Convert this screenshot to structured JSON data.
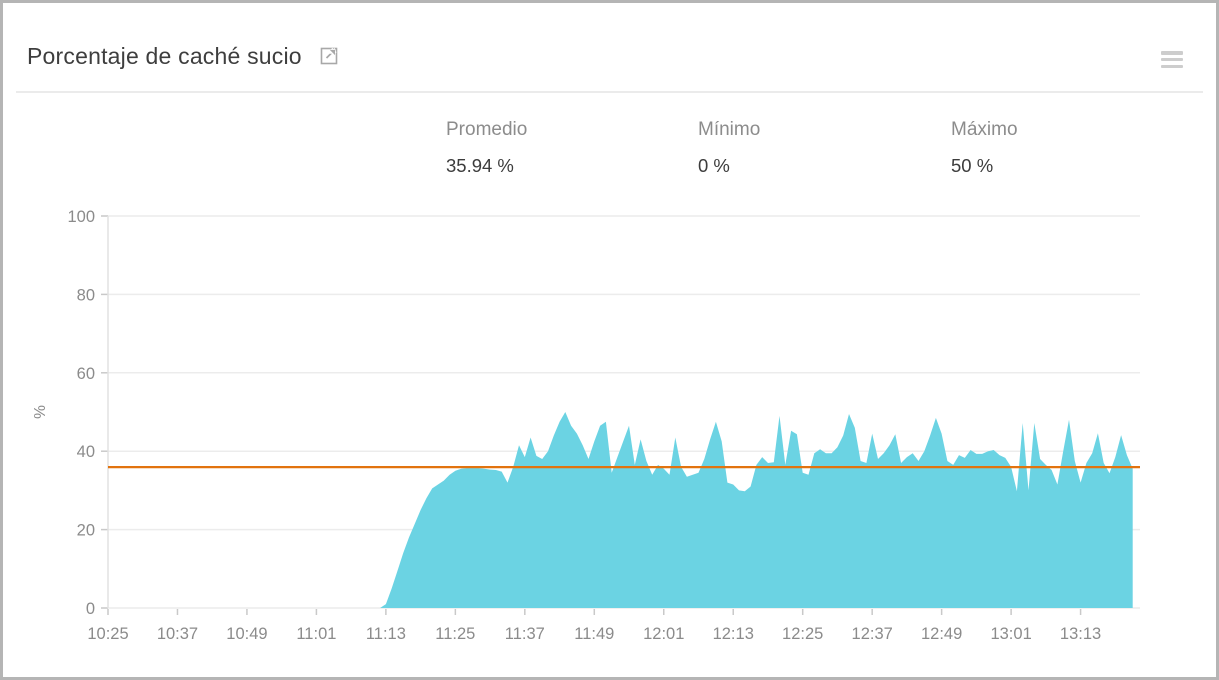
{
  "widget": {
    "title": "Porcentaje de caché sucio",
    "icons": {
      "external_link": "open-in-new-window",
      "menu": "hamburger-menu"
    }
  },
  "stats": {
    "promedio": {
      "label": "Promedio",
      "value": "35.94 %"
    },
    "minimo": {
      "label": "Mínimo",
      "value": "0 %"
    },
    "maximo": {
      "label": "Máximo",
      "value": "50 %"
    }
  },
  "chart_data": {
    "type": "area",
    "title": "Porcentaje de caché sucio",
    "xlabel": "",
    "ylabel": "%",
    "ylim": [
      0,
      100
    ],
    "y_ticks": [
      0,
      20,
      40,
      60,
      80,
      100
    ],
    "x_tick_labels": [
      "10:25",
      "10:37",
      "10:49",
      "11:01",
      "11:13",
      "11:25",
      "11:37",
      "11:49",
      "12:01",
      "12:13",
      "12:25",
      "12:37",
      "12:49",
      "13:01",
      "13:13"
    ],
    "x_tick_interval_minutes": 12,
    "start_time": "10:25",
    "end_time": "13:22",
    "sample_interval_minutes": 1,
    "grid": true,
    "legend_position": "none",
    "average_line_value": 35.94,
    "area_color": "#6bd3e3",
    "avg_line_color": "#e2730e",
    "grid_color": "#ececec",
    "axis_color": "#e2e2e2",
    "tick_color": "#c9c9c9",
    "label_color": "#8b8b8b",
    "values": [
      0,
      0,
      0,
      0,
      0,
      0,
      0,
      0,
      0,
      0,
      0,
      0,
      0,
      0,
      0,
      0,
      0,
      0,
      0,
      0,
      0,
      0,
      0,
      0,
      0,
      0,
      0,
      0,
      0,
      0,
      0,
      0,
      0,
      0,
      0,
      0,
      0,
      0,
      0,
      0,
      0,
      0,
      0,
      0,
      0,
      0,
      0,
      0,
      1,
      5,
      9.5,
      14,
      18,
      21.5,
      25,
      28,
      30.5,
      31.5,
      32.5,
      34,
      35,
      35.5,
      35.7,
      35.7,
      35.7,
      35.5,
      35.3,
      35.2,
      34.8,
      32,
      36,
      41.5,
      38.5,
      43.5,
      38.8,
      38,
      40,
      44,
      47.5,
      50,
      46.5,
      44.5,
      41.5,
      38,
      42.5,
      46.5,
      47.5,
      34.5,
      38.5,
      42.5,
      46.5,
      36.5,
      43,
      37.5,
      34,
      36.5,
      35.5,
      34,
      43.5,
      36,
      33.5,
      34,
      34.5,
      38,
      43,
      47.5,
      42.5,
      32,
      31.5,
      30,
      29.8,
      31,
      36.5,
      38.5,
      37,
      37.2,
      49,
      36.5,
      45.2,
      44.3,
      34.5,
      34,
      39.5,
      40.5,
      39.5,
      39.5,
      41,
      44,
      49.5,
      46,
      37.5,
      37,
      44.5,
      38,
      39.5,
      41.5,
      44.3,
      37,
      38.5,
      39.5,
      37.5,
      40,
      44,
      48.5,
      44.5,
      37.5,
      36.5,
      39,
      38.3,
      40.3,
      39.3,
      39.3,
      40,
      40.3,
      39,
      38.3,
      36,
      29.8,
      47.2,
      30,
      47.2,
      38,
      36.5,
      35.2,
      31.5,
      40,
      48,
      37.5,
      32,
      37,
      39.5,
      44.6,
      37,
      34.4,
      38.5,
      44.1,
      39,
      35.5
    ]
  }
}
